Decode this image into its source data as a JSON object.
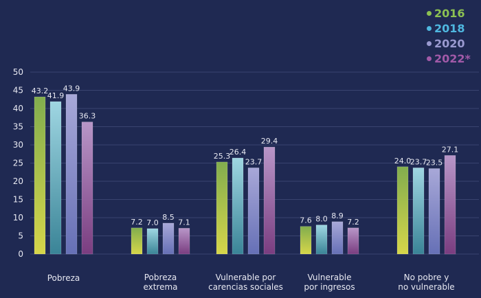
{
  "chart_data": {
    "type": "bar",
    "title": "",
    "xlabel": "",
    "ylabel": "",
    "ylim": [
      0,
      50
    ],
    "yticks": [
      "0",
      "5",
      "10",
      "15",
      "20",
      "25",
      "30",
      "35",
      "40",
      "45",
      "50"
    ],
    "grid": true,
    "legend_position": "top-right",
    "categories": [
      "Pobreza",
      "Pobreza\nextrema",
      "Vulnerable por\ncarencias sociales",
      "Vulnerable\npor ingresos",
      "No pobre y\nno vulnerable"
    ],
    "series": [
      {
        "name": "2016",
        "values": [
          43.2,
          7.2,
          25.3,
          7.6,
          24.0
        ],
        "labels": [
          "43.2",
          "7.2",
          "25.3",
          "7.6",
          "24.0"
        ]
      },
      {
        "name": "2018",
        "values": [
          41.9,
          7.0,
          26.4,
          8.0,
          23.7
        ],
        "labels": [
          "41.9",
          "7.0",
          "26.4",
          "8.0",
          "23.7"
        ]
      },
      {
        "name": "2020",
        "values": [
          43.9,
          8.5,
          23.7,
          8.9,
          23.5
        ],
        "labels": [
          "43.9",
          "8.5",
          "23.7",
          "8.9",
          "23.5"
        ]
      },
      {
        "name": "2022*",
        "values": [
          36.3,
          7.1,
          29.4,
          7.2,
          27.1
        ],
        "labels": [
          "36.3",
          "7.1",
          "29.4",
          "7.2",
          "27.1"
        ]
      }
    ]
  },
  "legend": [
    {
      "label": "2016",
      "color": "#8cc152"
    },
    {
      "label": "2018",
      "color": "#4fb8e0"
    },
    {
      "label": "2020",
      "color": "#9a9ad0"
    },
    {
      "label": "2022*",
      "color": "#a25aa8"
    }
  ],
  "colors": {
    "background": "#1f2952",
    "grid": "#3a4470",
    "text": "#e8e9f2",
    "gradients": [
      [
        "#82ad4e",
        "#d6d64a"
      ],
      [
        "#9fd6e2",
        "#3a8497"
      ],
      [
        "#a8a8d8",
        "#6670b6"
      ],
      [
        "#b896c8",
        "#7a3d80"
      ]
    ]
  }
}
